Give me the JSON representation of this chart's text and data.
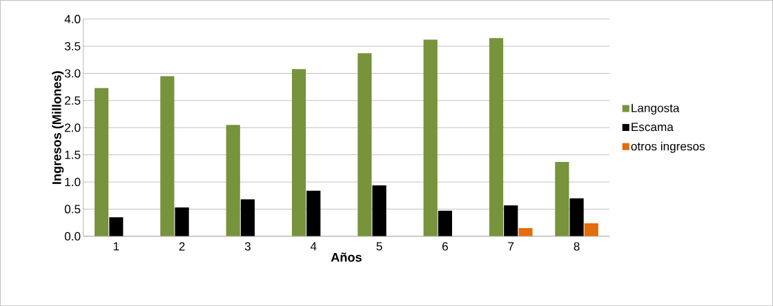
{
  "chart_data": {
    "type": "bar",
    "xlabel": "Años",
    "ylabel": "Ingresos (Millones)",
    "categories": [
      "1",
      "2",
      "3",
      "4",
      "5",
      "6",
      "7",
      "8"
    ],
    "series": [
      {
        "name": "Langosta",
        "color": "#77933c",
        "values": [
          2.73,
          2.95,
          2.05,
          3.08,
          3.37,
          3.62,
          3.65,
          1.37
        ]
      },
      {
        "name": "Escama",
        "color": "#000000",
        "values": [
          0.35,
          0.53,
          0.68,
          0.84,
          0.94,
          0.47,
          0.57,
          0.7
        ]
      },
      {
        "name": "otros ingresos",
        "color": "#e46c0a",
        "values": [
          null,
          null,
          null,
          null,
          null,
          null,
          0.15,
          0.24
        ]
      }
    ],
    "ylim": [
      0,
      4
    ],
    "yticks": [
      {
        "value": 0,
        "label": "0.0"
      },
      {
        "value": 0.5,
        "label": "0.5"
      },
      {
        "value": 1,
        "label": "1.0"
      },
      {
        "value": 1.5,
        "label": "1.5"
      },
      {
        "value": 2,
        "label": "2.0"
      },
      {
        "value": 2.5,
        "label": "2.5"
      },
      {
        "value": 3,
        "label": "3.0"
      },
      {
        "value": 3.5,
        "label": "3.5"
      },
      {
        "value": 4,
        "label": "4.0"
      }
    ],
    "grid": "y",
    "legend": "right"
  }
}
